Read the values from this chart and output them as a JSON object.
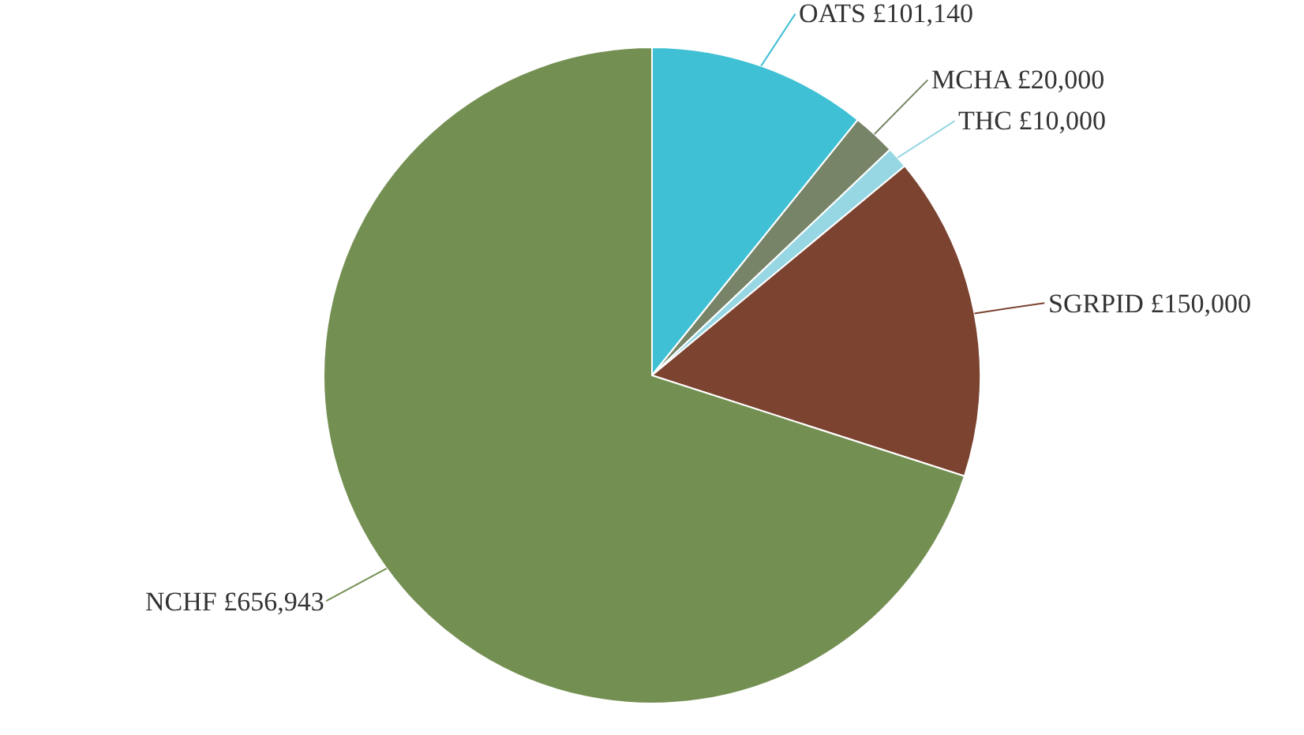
{
  "chart_data": {
    "type": "pie",
    "categories": [
      "OATS",
      "MCHA",
      "THC",
      "SGRPID",
      "NCHF"
    ],
    "values": [
      101140,
      20000,
      10000,
      150000,
      656943
    ],
    "value_labels": [
      "£101,140",
      "£20,000",
      "£10,000",
      "£150,000",
      "£656,943"
    ],
    "colors": [
      "#40c0d4",
      "#778468",
      "#97d7e3",
      "#7b4330",
      "#748f52"
    ],
    "legend": false
  }
}
